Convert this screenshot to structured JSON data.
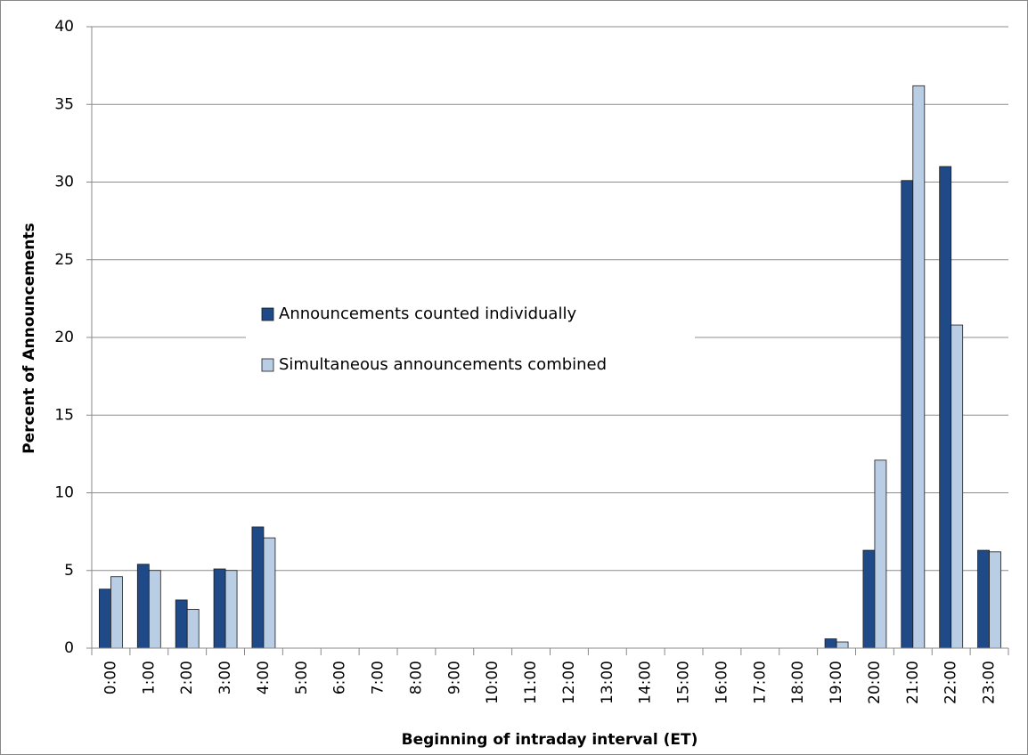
{
  "chart_data": {
    "type": "bar",
    "x_label": "Beginning of intraday interval (ET)",
    "y_label": "Percent of Announcements",
    "categories": [
      "0:00",
      "1:00",
      "2:00",
      "3:00",
      "4:00",
      "5:00",
      "6:00",
      "7:00",
      "8:00",
      "9:00",
      "10:00",
      "11:00",
      "12:00",
      "13:00",
      "14:00",
      "15:00",
      "16:00",
      "17:00",
      "18:00",
      "19:00",
      "20:00",
      "21:00",
      "22:00",
      "23:00"
    ],
    "series": [
      {
        "name": "Announcements counted individually",
        "color": "#1f4a87",
        "values": [
          3.8,
          5.4,
          3.1,
          5.1,
          7.8,
          0,
          0,
          0,
          0,
          0,
          0,
          0,
          0,
          0,
          0,
          0,
          0,
          0,
          0,
          0.6,
          6.3,
          30.1,
          31.0,
          6.3
        ]
      },
      {
        "name": "Simultaneous announcements combined",
        "color": "#b9cde5",
        "values": [
          4.6,
          5.0,
          2.5,
          5.0,
          7.1,
          0,
          0,
          0,
          0,
          0,
          0,
          0,
          0,
          0,
          0,
          0,
          0,
          0,
          0,
          0.4,
          12.1,
          36.2,
          20.8,
          6.2
        ]
      }
    ],
    "ylim": [
      0,
      40
    ],
    "yticks": [
      0,
      5,
      10,
      15,
      20,
      25,
      30,
      35,
      40
    ],
    "grid": true
  }
}
